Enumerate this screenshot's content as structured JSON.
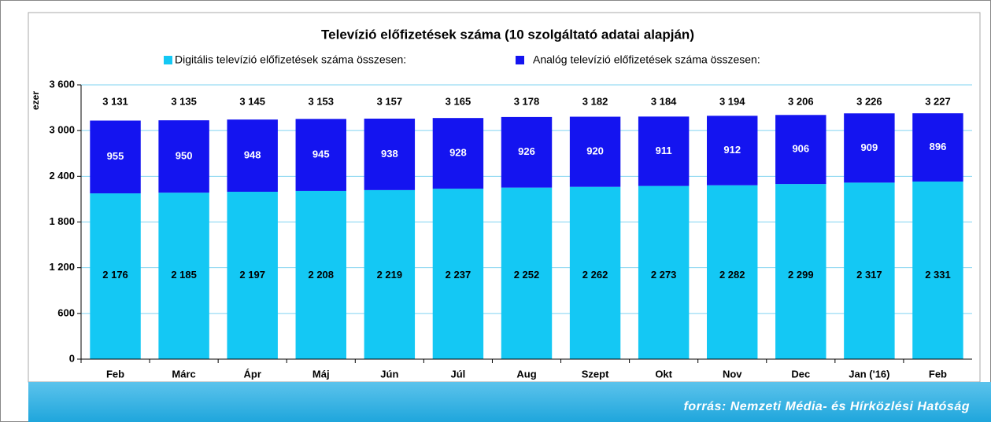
{
  "chart_data": {
    "type": "stacked-bar",
    "title": "Televízió előfizetések száma (10 szolgáltató adatai alapján)",
    "y_label": "ezer",
    "source": "forrás: Nemzeti Média- és Hírközlési Hatóság",
    "categories": [
      "Feb",
      "Márc",
      "Ápr",
      "Máj",
      "Jún",
      "Júl",
      "Aug",
      "Szept",
      "Okt",
      "Nov",
      "Dec",
      "Jan ('16)",
      "Feb"
    ],
    "series": [
      {
        "name": "Digitális televízió előfizetések száma összesen:",
        "color": "#14c8f4",
        "values": [
          2176,
          2185,
          2197,
          2208,
          2219,
          2237,
          2252,
          2262,
          2273,
          2282,
          2299,
          2317,
          2331
        ],
        "value_labels": [
          "2 176",
          "2 185",
          "2 197",
          "2 208",
          "2 219",
          "2 237",
          "2 252",
          "2 262",
          "2 273",
          "2 282",
          "2 299",
          "2 317",
          "2 331"
        ]
      },
      {
        "name": "Analóg televízió előfizetések száma összesen:",
        "color": "#1414f0",
        "values": [
          955,
          950,
          948,
          945,
          938,
          928,
          926,
          920,
          911,
          912,
          906,
          909,
          896
        ]
      }
    ],
    "totals": {
      "values": [
        3131,
        3135,
        3145,
        3153,
        3157,
        3165,
        3178,
        3182,
        3184,
        3194,
        3206,
        3226,
        3227
      ],
      "value_labels": [
        "3 131",
        "3 135",
        "3 145",
        "3 153",
        "3 157",
        "3 165",
        "3 178",
        "3 182",
        "3 184",
        "3 194",
        "3 206",
        "3 226",
        "3 227"
      ]
    },
    "ylim": [
      0,
      3600
    ],
    "yticks": [
      0,
      600,
      {
        "value": 1200,
        "label": "1 200"
      },
      {
        "value": 1800,
        "label": "1 800"
      },
      {
        "value": 2400,
        "label": "2 400"
      },
      {
        "value": 3000,
        "label": "3 000"
      },
      {
        "value": 3600,
        "label": "3 600"
      }
    ],
    "grid": true
  }
}
